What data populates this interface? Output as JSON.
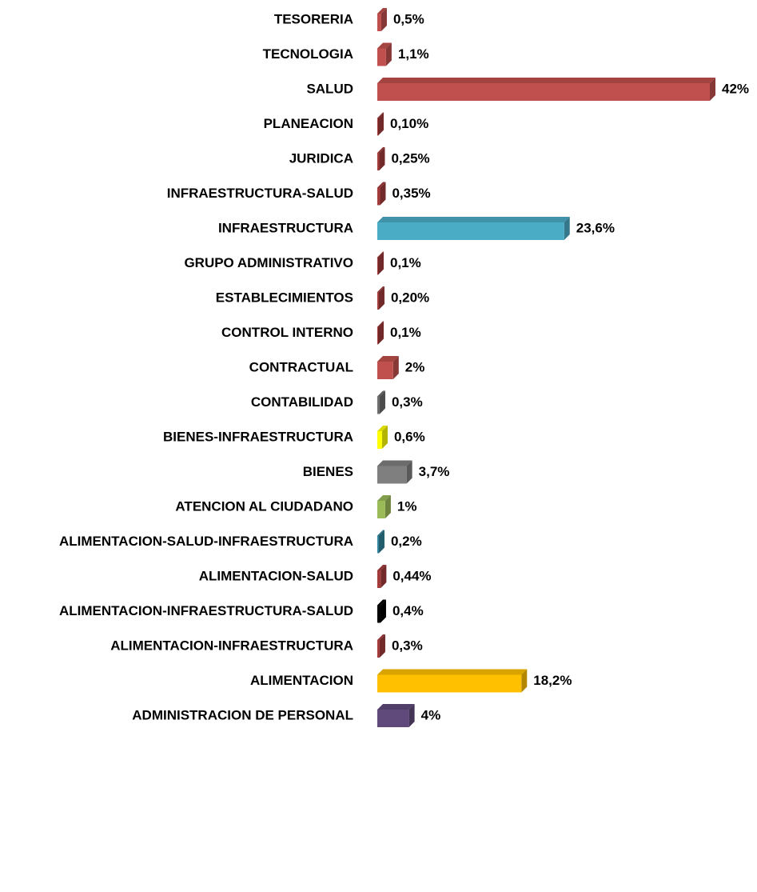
{
  "chart_data": {
    "type": "bar",
    "orientation": "horizontal",
    "categories": [
      "TESORERIA",
      "TECNOLOGIA",
      "SALUD",
      "PLANEACION",
      "JURIDICA",
      "INFRAESTRUCTURA-SALUD",
      "INFRAESTRUCTURA",
      "GRUPO ADMINISTRATIVO",
      "ESTABLECIMIENTOS",
      "CONTROL INTERNO",
      "CONTRACTUAL",
      "CONTABILIDAD",
      "BIENES-INFRAESTRUCTURA",
      "BIENES",
      "ATENCION AL CIUDADANO",
      "ALIMENTACION-SALUD-INFRAESTRUCTURA",
      "ALIMENTACION-SALUD",
      "ALIMENTACION-INFRAESTRUCTURA-SALUD",
      "ALIMENTACION-INFRAESTRUCTURA",
      "ALIMENTACION",
      "ADMINISTRACION DE PERSONAL"
    ],
    "values": [
      0.5,
      1.1,
      42,
      0.1,
      0.25,
      0.35,
      23.6,
      0.1,
      0.2,
      0.1,
      2,
      0.3,
      0.6,
      3.7,
      1,
      0.2,
      0.44,
      0.4,
      0.3,
      18.2,
      4
    ],
    "value_labels": [
      "0,5%",
      "1,1%",
      "42%",
      "0,10%",
      "0,25%",
      "0,35%",
      "23,6%",
      "0,1%",
      "0,20%",
      "0,1%",
      "2%",
      "0,3%",
      "0,6%",
      "3,7%",
      "1%",
      "0,2%",
      "0,44%",
      "0,4%",
      "0,3%",
      "18,2%",
      "4%"
    ],
    "colors": [
      "#c0504d",
      "#c0504d",
      "#c0504d",
      "#a33b3b",
      "#a33b3b",
      "#a33b3b",
      "#4bacc6",
      "#a33b3b",
      "#a33b3b",
      "#a33b3b",
      "#c0504d",
      "#6d6d6d",
      "#ffff00",
      "#7f7f7f",
      "#9bbb59",
      "#31859c",
      "#a33b3b",
      "#000000",
      "#a33b3b",
      "#ffc000",
      "#604a7b"
    ]
  }
}
